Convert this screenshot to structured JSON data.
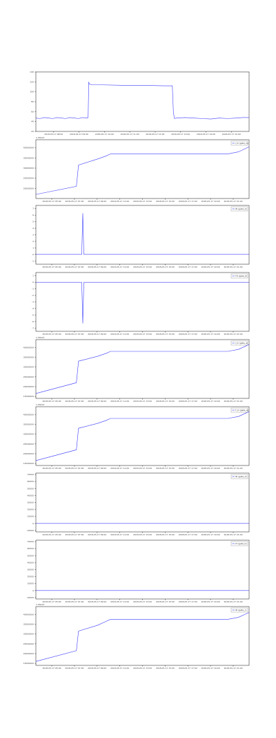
{
  "chart_data": [
    {
      "type": "line",
      "title": "",
      "xlabel": "",
      "ylabel": "",
      "x_ticks": [
        "2018-05-17 08:00",
        "2018-05-17 09:00",
        "2018-05-17 10:00",
        "2018-05-17 11:00",
        "2018-05-17 12:00",
        "2018-05-17 13:00",
        "2018-05-17 14:00",
        "2018-05-17 15:00"
      ],
      "y_ticks": [
        "20",
        "40",
        "60",
        "80",
        "100",
        "120",
        "140"
      ],
      "ylim": [
        20,
        140
      ],
      "legend": "",
      "series": [
        {
          "color": "#3c3cff",
          "x": [
            0.0,
            0.02,
            0.04,
            0.06,
            0.08,
            0.1,
            0.12,
            0.14,
            0.16,
            0.18,
            0.2,
            0.22,
            0.24,
            0.245,
            0.248,
            0.25,
            0.26,
            0.3,
            0.4,
            0.5,
            0.6,
            0.64,
            0.645,
            0.65,
            0.66,
            0.7,
            0.74,
            0.78,
            0.82,
            0.86,
            0.9,
            0.94,
            0.97,
            1.0
          ],
          "y": [
            47,
            46,
            48,
            47,
            46,
            48,
            47,
            46,
            48,
            47,
            46,
            48,
            47,
            48,
            120,
            116,
            114,
            114,
            113,
            113,
            112,
            112,
            58,
            46,
            47,
            48,
            47,
            46,
            45,
            47,
            46,
            47,
            48,
            48
          ]
        }
      ]
    },
    {
      "type": "line",
      "offset_text": "1.00e13",
      "legend": "I_D (gate_in)",
      "y_ticks": [
        "20000000",
        "25000000",
        "30000000",
        "35000000",
        "40000000"
      ],
      "ylim": [
        15000000,
        44000000
      ],
      "x_ticks": [
        "2018-05-17 05:00",
        "2018-05-17 07:00",
        "2018-05-17 09:00",
        "2018-05-17 11:00",
        "2018-05-17 13:00",
        "2018-05-17 15:00",
        "2018-05-17 17:00",
        "2018-05-17 19:00",
        "2018-05-17 21:00"
      ],
      "series": [
        {
          "color": "#3c3cff",
          "x": [
            0.0,
            0.19,
            0.2,
            0.29,
            0.33,
            0.35,
            0.5,
            0.7,
            0.9,
            0.95,
            1.0
          ],
          "y": [
            17000000,
            21000000,
            31500000,
            34500000,
            36000000,
            37000000,
            37000000,
            37000000,
            37000000,
            38000000,
            40500000
          ]
        }
      ]
    },
    {
      "type": "line",
      "legend": "ID (gate_b)",
      "y_ticks": [
        "-1",
        "0",
        "1",
        "2",
        "3",
        "4",
        "5",
        "6",
        "7"
      ],
      "ylim": [
        -1.5,
        7.5
      ],
      "x_ticks": [
        "2018-05-17 05:00",
        "2018-05-17 07:00",
        "2018-05-17 09:00",
        "2018-05-17 11:00",
        "2018-05-17 13:00",
        "2018-05-17 15:00",
        "2018-05-17 17:00",
        "2018-05-17 19:00",
        "2018-05-17 21:00"
      ],
      "series": [
        {
          "color": "#3c3cff",
          "x": [
            0.0,
            0.1,
            0.2,
            0.215,
            0.22,
            0.225,
            0.23,
            0.3,
            0.4,
            0.5,
            0.6,
            0.7,
            0.8,
            0.9,
            1.0
          ],
          "y": [
            0.0,
            0.0,
            0.0,
            0.0,
            6.3,
            0.0,
            0.0,
            0.0,
            0.0,
            0.0,
            0.0,
            0.0,
            0.0,
            0.0,
            0.0
          ]
        }
      ]
    },
    {
      "type": "line",
      "legend": "T0 (gate_b)",
      "y_ticks": [
        "-7",
        "-6",
        "-5",
        "-4",
        "-3",
        "-2",
        "-1",
        "0",
        "1"
      ],
      "ylim": [
        -7.5,
        1.5
      ],
      "x_ticks": [
        "2018-05-17 05:00",
        "2018-05-17 07:00",
        "2018-05-17 09:00",
        "2018-05-17 11:00",
        "2018-05-17 13:00",
        "2018-05-17 15:00",
        "2018-05-17 17:00",
        "2018-05-17 19:00",
        "2018-05-17 21:00"
      ],
      "series": [
        {
          "color": "#3c3cff",
          "x": [
            0.0,
            0.1,
            0.2,
            0.215,
            0.22,
            0.225,
            0.23,
            0.3,
            0.4,
            0.5,
            0.6,
            0.7,
            0.8,
            0.9,
            1.0
          ],
          "y": [
            0.0,
            0.0,
            0.0,
            0.0,
            -6.3,
            0.0,
            0.0,
            0.0,
            0.0,
            0.0,
            0.0,
            0.0,
            0.0,
            0.0,
            0.0
          ]
        }
      ]
    },
    {
      "type": "line",
      "offset_text": "1.00e13",
      "legend": "I_D (gate_a)",
      "y_ticks": [
        "15000000",
        "20000000",
        "25000000",
        "30000000",
        "35000000",
        "40000000"
      ],
      "ylim": [
        14000000,
        44000000
      ],
      "x_ticks": [
        "2018-05-17 05:00",
        "2018-05-17 07:00",
        "2018-05-17 09:00",
        "2018-05-17 11:00",
        "2018-05-17 13:00",
        "2018-05-17 15:00",
        "2018-05-17 17:00",
        "2018-05-17 19:00",
        "2018-05-17 21:00"
      ],
      "series": [
        {
          "color": "#3c3cff",
          "x": [
            0.0,
            0.19,
            0.2,
            0.29,
            0.33,
            0.35,
            0.5,
            0.7,
            0.9,
            0.95,
            1.0
          ],
          "y": [
            16500000,
            22000000,
            33000000,
            35500000,
            37000000,
            38000000,
            38000000,
            38000000,
            38000000,
            39000000,
            41500000
          ]
        }
      ]
    },
    {
      "type": "line",
      "offset_text": "1.00e13",
      "legend": "T_D (gate_a)",
      "y_ticks": [
        "15000000",
        "20000000",
        "25000000",
        "30000000",
        "35000000",
        "40000000"
      ],
      "ylim": [
        14000000,
        44000000
      ],
      "x_ticks": [
        "2018-05-17 05:00",
        "2018-05-17 07:00",
        "2018-05-17 09:00",
        "2018-05-17 11:00",
        "2018-05-17 13:00",
        "2018-05-17 15:00",
        "2018-05-17 17:00",
        "2018-05-17 19:00",
        "2018-05-17 21:00"
      ],
      "series": [
        {
          "color": "#3c3cff",
          "x": [
            0.0,
            0.19,
            0.2,
            0.29,
            0.33,
            0.35,
            0.5,
            0.7,
            0.9,
            0.95,
            1.0
          ],
          "y": [
            16500000,
            22000000,
            33000000,
            35500000,
            37000000,
            38000000,
            38000000,
            38000000,
            38000000,
            39000000,
            41500000
          ]
        }
      ]
    },
    {
      "type": "line",
      "legend": "ID (gate_b)",
      "y_ticks": [
        "-10000",
        "0",
        "10000",
        "20000",
        "30000",
        "40000",
        "50000",
        "60000",
        "70000"
      ],
      "ylim": [
        -12000,
        72000
      ],
      "x_ticks": [
        "2018-05-17 05:00",
        "2018-05-17 07:00",
        "2018-05-17 09:00",
        "2018-05-17 11:00",
        "2018-05-17 13:00",
        "2018-05-17 15:00",
        "2018-05-17 17:00",
        "2018-05-17 19:00",
        "2018-05-17 21:00"
      ],
      "series": [
        {
          "color": "#3c3cff",
          "x": [
            0.0,
            0.25,
            0.5,
            0.75,
            1.0
          ],
          "y": [
            0,
            0,
            0,
            0,
            0
          ]
        }
      ]
    },
    {
      "type": "line",
      "legend": "LT (gate_b)",
      "y_ticks": [
        "-10000",
        "0",
        "10000",
        "20000",
        "30000",
        "40000",
        "50000",
        "60000",
        "70000"
      ],
      "ylim": [
        -12000,
        72000
      ],
      "x_ticks": [
        "2018-05-17 05:00",
        "2018-05-17 07:00",
        "2018-05-17 09:00",
        "2018-05-17 11:00",
        "2018-05-17 13:00",
        "2018-05-17 15:00",
        "2018-05-17 17:00",
        "2018-05-17 19:00",
        "2018-05-17 21:00"
      ],
      "series": [
        {
          "color": "#3c3cff",
          "x": [
            0.0,
            0.25,
            0.5,
            0.75,
            1.0
          ],
          "y": [
            0,
            0,
            0,
            0,
            0
          ]
        }
      ]
    },
    {
      "type": "line",
      "offset_text": "1.00e13",
      "legend": "ID (gate_c)",
      "y_ticks": [
        "15000000",
        "20000000",
        "25000000",
        "30000000",
        "35000000",
        "40000000"
      ],
      "ylim": [
        14000000,
        44000000
      ],
      "x_ticks": [
        "2018-05-17 05:00",
        "2018-05-17 07:00",
        "2018-05-17 09:00",
        "2018-05-17 11:00",
        "2018-05-17 13:00",
        "2018-05-17 15:00",
        "2018-05-17 17:00",
        "2018-05-17 19:00",
        "2018-05-17 21:00"
      ],
      "series": [
        {
          "color": "#3c3cff",
          "x": [
            0.0,
            0.19,
            0.2,
            0.29,
            0.33,
            0.35,
            0.5,
            0.7,
            0.9,
            0.95,
            1.0
          ],
          "y": [
            16000000,
            21500000,
            31500000,
            34500000,
            36500000,
            37500000,
            37500000,
            37500000,
            37500000,
            38500000,
            41000000
          ]
        }
      ]
    }
  ]
}
